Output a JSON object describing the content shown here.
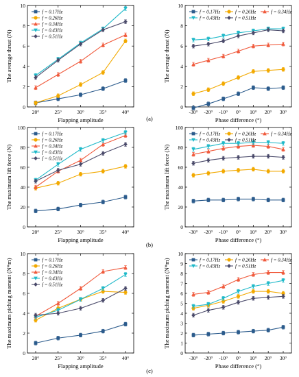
{
  "legend_labels": [
    "f = 0.17Hz",
    "f = 0.26Hz",
    "f = 0.34Hz",
    "f = 0.43Hz",
    "f = 0.51Hz"
  ],
  "series_colors": [
    "#2b5b8c",
    "#f2a900",
    "#f05a3c",
    "#1fb9c9",
    "#4a4a6a"
  ],
  "panel_labels": [
    "(a)",
    "(b)",
    "(c)"
  ],
  "chart_data": [
    {
      "type": "line",
      "id": "a-left",
      "categories": [
        "20°",
        "25°",
        "30°",
        "35°",
        "40°"
      ],
      "xlabel": "Flapping amplitude",
      "ylabel": "The average thrust (N)",
      "ylim": [
        0,
        10
      ],
      "yticks": [
        0,
        2,
        4,
        6,
        8,
        10
      ],
      "series": [
        {
          "values": [
            0.4,
            0.8,
            1.2,
            1.8,
            2.6
          ]
        },
        {
          "values": [
            0.4,
            1.1,
            2.2,
            3.4,
            6.5
          ]
        },
        {
          "values": [
            1.9,
            3.2,
            4.5,
            6.1,
            7.1
          ]
        },
        {
          "values": [
            3.1,
            4.7,
            6.3,
            7.7,
            9.7
          ]
        },
        {
          "values": [
            2.9,
            4.6,
            6.2,
            7.6,
            8.4
          ]
        }
      ]
    },
    {
      "type": "line",
      "id": "a-right",
      "categories": [
        "-30°",
        "-20°",
        "-10°",
        "0°",
        "10°",
        "20°",
        "30°"
      ],
      "xlabel": "Phase difference (°)",
      "ylabel": "The average thrust (N)",
      "ylim": [
        0,
        10
      ],
      "yticks": [
        0,
        2,
        4,
        6,
        8,
        10
      ],
      "series": [
        {
          "values": [
            -0.1,
            0.3,
            0.8,
            1.3,
            1.9,
            1.8,
            1.9
          ]
        },
        {
          "values": [
            1.3,
            1.7,
            2.3,
            2.9,
            3.5,
            3.6,
            3.7
          ]
        },
        {
          "values": [
            4.2,
            4.6,
            5.0,
            5.5,
            6.0,
            6.1,
            6.2
          ]
        },
        {
          "values": [
            6.6,
            6.7,
            7.0,
            7.3,
            7.5,
            7.7,
            7.7
          ]
        },
        {
          "values": [
            6.0,
            6.2,
            6.5,
            7.0,
            7.3,
            7.6,
            7.5
          ]
        }
      ]
    },
    {
      "type": "line",
      "id": "b-left",
      "categories": [
        "20°",
        "25°",
        "30°",
        "35°",
        "40°"
      ],
      "xlabel": "Flapping amplitude",
      "ylabel": "The maximum lift force (N)",
      "ylim": [
        0,
        100
      ],
      "yticks": [
        0,
        20,
        40,
        60,
        80,
        100
      ],
      "series": [
        {
          "values": [
            16,
            18,
            22,
            25,
            30
          ]
        },
        {
          "values": [
            39,
            44,
            53,
            56,
            61
          ]
        },
        {
          "values": [
            40,
            56,
            67,
            83,
            92
          ]
        },
        {
          "values": [
            47,
            63,
            78,
            87,
            95
          ]
        },
        {
          "values": [
            46,
            57,
            63,
            74,
            83
          ]
        }
      ]
    },
    {
      "type": "line",
      "id": "b-right",
      "categories": [
        "-30°",
        "-20°",
        "-10°",
        "0°",
        "10°",
        "20°",
        "30°"
      ],
      "xlabel": "Phase difference (°)",
      "ylabel": "The maximum lift force (N)",
      "ylim": [
        0,
        100
      ],
      "yticks": [
        0,
        20,
        40,
        60,
        80,
        100
      ],
      "series": [
        {
          "values": [
            26,
            27,
            27,
            28,
            28,
            27,
            27
          ]
        },
        {
          "values": [
            52,
            54,
            56,
            57,
            58,
            56,
            56
          ]
        },
        {
          "values": [
            73,
            76,
            79,
            81,
            82,
            81,
            78
          ]
        },
        {
          "values": [
            78,
            81,
            84,
            84,
            85,
            85,
            84
          ]
        },
        {
          "values": [
            64,
            67,
            69,
            70,
            71,
            71,
            70
          ]
        }
      ]
    },
    {
      "type": "line",
      "id": "c-left",
      "categories": [
        "20°",
        "25°",
        "30°",
        "35°",
        "40°"
      ],
      "xlabel": "Flapping amplitude",
      "ylabel": "The maximum piching moment (N*m)",
      "ylim": [
        0,
        10
      ],
      "yticks": [
        0,
        2,
        4,
        6,
        8,
        10
      ],
      "series": [
        {
          "values": [
            1.0,
            1.5,
            1.8,
            2.2,
            2.9
          ]
        },
        {
          "values": [
            3.3,
            4.5,
            5.4,
            6.2,
            6.1
          ]
        },
        {
          "values": [
            3.7,
            5.0,
            6.5,
            8.2,
            8.6
          ]
        },
        {
          "values": [
            3.6,
            4.3,
            5.4,
            6.5,
            7.9
          ]
        },
        {
          "values": [
            3.8,
            4.0,
            4.5,
            5.3,
            6.5
          ]
        }
      ]
    },
    {
      "type": "line",
      "id": "c-right",
      "categories": [
        "-30°",
        "-20°",
        "-10°",
        "0°",
        "10°",
        "20°",
        "30°"
      ],
      "xlabel": "Phase difference (°)",
      "ylabel": "The maximum piching moment (N*m)",
      "ylim": [
        0,
        10
      ],
      "yticks": [
        0,
        1,
        2,
        3,
        4,
        5,
        6,
        7,
        8,
        9,
        10
      ],
      "series": [
        {
          "values": [
            1.8,
            1.9,
            2.0,
            2.1,
            2.2,
            2.3,
            2.6
          ]
        },
        {
          "values": [
            4.5,
            4.8,
            5.2,
            5.7,
            6.2,
            6.2,
            6.0
          ]
        },
        {
          "values": [
            5.9,
            6.1,
            6.7,
            7.4,
            7.9,
            8.1,
            8.1
          ]
        },
        {
          "values": [
            4.7,
            4.9,
            5.5,
            6.2,
            6.7,
            7.0,
            7.3
          ]
        },
        {
          "values": [
            3.8,
            4.3,
            4.6,
            5.1,
            5.5,
            5.6,
            5.7
          ]
        }
      ]
    }
  ]
}
